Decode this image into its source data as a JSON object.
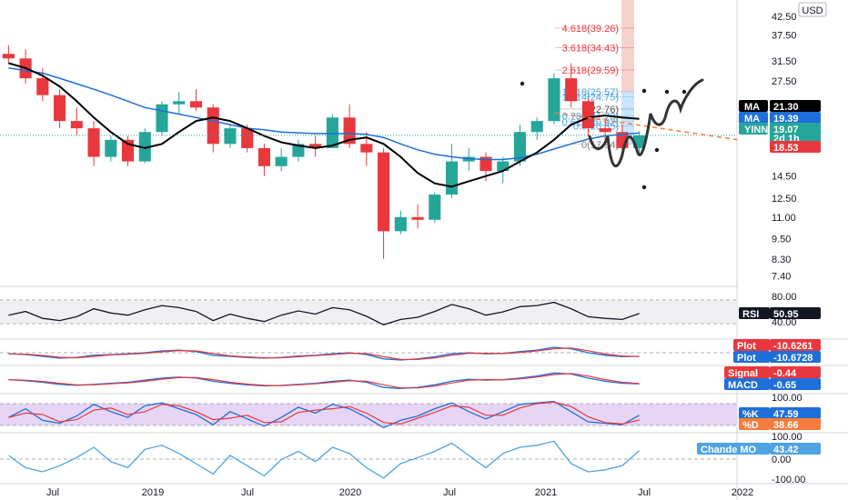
{
  "chart_data": {
    "type": "candlestick",
    "ticker": "YINN",
    "currency": "USD",
    "price_axis_ticks": [
      "42.50",
      "37.50",
      "31.50",
      "27.50",
      "23.50",
      "19.00",
      "14.50",
      "12.50",
      "11.00",
      "9.50",
      "8.30",
      "7.40"
    ],
    "time_axis_ticks": [
      "Jul",
      "2019",
      "Jul",
      "2020",
      "Jul",
      "2021",
      "Jul",
      "2022"
    ],
    "scale": "log",
    "price_bars": [
      {
        "label": "2018-05",
        "open": 33,
        "high": 35,
        "low": 31,
        "close": 32
      },
      {
        "label": "2018-06",
        "open": 32,
        "high": 34,
        "low": 27,
        "close": 28
      },
      {
        "label": "2018-07",
        "open": 28,
        "high": 30,
        "low": 24,
        "close": 25
      },
      {
        "label": "2018-08",
        "open": 25,
        "high": 26,
        "low": 20,
        "close": 21
      },
      {
        "label": "2018-09",
        "open": 21,
        "high": 23,
        "low": 19,
        "close": 20
      },
      {
        "label": "2018-10",
        "open": 20,
        "high": 21,
        "low": 15.5,
        "close": 16.5
      },
      {
        "label": "2018-11",
        "open": 16.5,
        "high": 19,
        "low": 16,
        "close": 18.5
      },
      {
        "label": "2018-12",
        "open": 18.5,
        "high": 19,
        "low": 15.5,
        "close": 16
      },
      {
        "label": "2019-01",
        "open": 16,
        "high": 20,
        "low": 15.8,
        "close": 19.5
      },
      {
        "label": "2019-02",
        "open": 19.5,
        "high": 24,
        "low": 19,
        "close": 23.5
      },
      {
        "label": "2019-03",
        "open": 23.5,
        "high": 25.5,
        "low": 22,
        "close": 24
      },
      {
        "label": "2019-04",
        "open": 24,
        "high": 26,
        "low": 22.5,
        "close": 23
      },
      {
        "label": "2019-05",
        "open": 23,
        "high": 23.5,
        "low": 17,
        "close": 18
      },
      {
        "label": "2019-06",
        "open": 18,
        "high": 20.5,
        "low": 17.5,
        "close": 20
      },
      {
        "label": "2019-07",
        "open": 20,
        "high": 20.5,
        "low": 17,
        "close": 17.5
      },
      {
        "label": "2019-08",
        "open": 17.5,
        "high": 18,
        "low": 14.5,
        "close": 15.5
      },
      {
        "label": "2019-09",
        "open": 15.5,
        "high": 17.5,
        "low": 15,
        "close": 16.5
      },
      {
        "label": "2019-10",
        "open": 16.5,
        "high": 18.5,
        "low": 16,
        "close": 18
      },
      {
        "label": "2019-11",
        "open": 18,
        "high": 19,
        "low": 16.5,
        "close": 17.5
      },
      {
        "label": "2019-12",
        "open": 17.5,
        "high": 22,
        "low": 17.5,
        "close": 21.5
      },
      {
        "label": "2020-01",
        "open": 21.5,
        "high": 23.5,
        "low": 17.5,
        "close": 18
      },
      {
        "label": "2020-02",
        "open": 18,
        "high": 19.5,
        "low": 15.5,
        "close": 17
      },
      {
        "label": "2020-03",
        "open": 17,
        "high": 17.5,
        "low": 8.3,
        "close": 10
      },
      {
        "label": "2020-04",
        "open": 10,
        "high": 11.5,
        "low": 9.8,
        "close": 11
      },
      {
        "label": "2020-05",
        "open": 11,
        "high": 12,
        "low": 10.2,
        "close": 10.8
      },
      {
        "label": "2020-06",
        "open": 10.8,
        "high": 13,
        "low": 10.6,
        "close": 12.8
      },
      {
        "label": "2020-07",
        "open": 12.8,
        "high": 18,
        "low": 12.5,
        "close": 16
      },
      {
        "label": "2020-08",
        "open": 16,
        "high": 17.5,
        "low": 15,
        "close": 16.5
      },
      {
        "label": "2020-09",
        "open": 16.5,
        "high": 17,
        "low": 14,
        "close": 15
      },
      {
        "label": "2020-10",
        "open": 15,
        "high": 16.5,
        "low": 13.8,
        "close": 16
      },
      {
        "label": "2020-11",
        "open": 16,
        "high": 20.5,
        "low": 15.5,
        "close": 19.5
      },
      {
        "label": "2020-12",
        "open": 19.5,
        "high": 21.5,
        "low": 18.5,
        "close": 21
      },
      {
        "label": "2021-01",
        "open": 21,
        "high": 29,
        "low": 20.5,
        "close": 28
      },
      {
        "label": "2021-02",
        "open": 28,
        "high": 31,
        "low": 23,
        "close": 24
      },
      {
        "label": "2021-03",
        "open": 24,
        "high": 24.5,
        "low": 19,
        "close": 20
      },
      {
        "label": "2021-04",
        "open": 20,
        "high": 21.5,
        "low": 18.5,
        "close": 19.5
      },
      {
        "label": "2021-05",
        "open": 19.5,
        "high": 20.5,
        "low": 16.5,
        "close": 17.5
      },
      {
        "label": "2021-06",
        "open": 17.5,
        "high": 19.6,
        "low": 16.8,
        "close": 19.07
      }
    ],
    "ma_black": [
      31,
      30,
      28.5,
      26.5,
      24,
      21.5,
      19.5,
      18,
      17.5,
      18,
      19.5,
      21,
      21.5,
      21,
      20,
      19,
      18.2,
      17.8,
      17.5,
      17.8,
      18.5,
      18.8,
      18,
      16.5,
      14.8,
      13.8,
      13.5,
      14,
      14.5,
      15,
      16,
      17,
      18.5,
      20.5,
      21.5,
      21.8,
      21.5,
      21.3
    ],
    "ma_blue": [
      30,
      29.5,
      29,
      28,
      27,
      26,
      25,
      24,
      23,
      22.5,
      22,
      21.5,
      21,
      20.5,
      20,
      19.8,
      19.5,
      19.4,
      19.3,
      19.3,
      19.3,
      19.2,
      18.8,
      18,
      17.3,
      16.8,
      16.5,
      16.3,
      16.2,
      16.2,
      16.4,
      16.8,
      17.4,
      18,
      18.6,
      19,
      19.2,
      19.39
    ],
    "fibonacci_levels": [
      {
        "label": "4.618(39.26)",
        "value": 39.26
      },
      {
        "label": "3.618(34.43)",
        "value": 34.43
      },
      {
        "label": "2.618(29.59)",
        "value": 29.59
      },
      {
        "label": "1.618(25.57)",
        "value": 25.57
      },
      {
        "label": "1.414(24.75)",
        "value": 24.75
      },
      {
        "label": "1(22.76)",
        "value": 22.76
      },
      {
        "label": "0.786(21.73)",
        "value": 21.73
      },
      {
        "label": "0.618(20.92)",
        "value": 20.92
      },
      {
        "label": "0.5(20.35)",
        "value": 20.35
      },
      {
        "label": "0(17.94)",
        "value": 17.94
      }
    ],
    "price_labels": [
      {
        "name": "MA",
        "value": "21.30",
        "color": "#000000"
      },
      {
        "name": "MA",
        "value": "19.39",
        "color": "#1e6fd9"
      },
      {
        "name": "YINN",
        "value": "19.07",
        "extra": "2d 1h",
        "color": "#26a69a"
      },
      {
        "name": "",
        "value": "18.53",
        "color": "#e8383d"
      }
    ],
    "trendline_value": 18.53,
    "rsi": {
      "label": "RSI",
      "value": "50.95",
      "ticks": [
        "80.00",
        "40.00"
      ],
      "values": [
        48,
        55,
        42,
        38,
        45,
        60,
        52,
        48,
        58,
        66,
        62,
        55,
        38,
        50,
        42,
        36,
        48,
        56,
        50,
        62,
        58,
        46,
        30,
        40,
        44,
        55,
        68,
        60,
        48,
        54,
        64,
        66,
        72,
        60,
        45,
        42,
        40,
        50.95
      ]
    },
    "osc1": {
      "labels": [
        {
          "name": "Plot",
          "value": "-10.6261",
          "color": "#e8383d"
        },
        {
          "name": "Plot",
          "value": "-10.6728",
          "color": "#1e6fd9"
        }
      ],
      "values": [
        52,
        50,
        45,
        40,
        42,
        48,
        50,
        52,
        55,
        60,
        62,
        58,
        48,
        45,
        42,
        40,
        42,
        46,
        48,
        52,
        55,
        50,
        38,
        35,
        38,
        44,
        52,
        55,
        52,
        53,
        58,
        62,
        70,
        66,
        55,
        48,
        44,
        45
      ]
    },
    "macd": {
      "labels": [
        {
          "name": "Signal",
          "value": "-0.44",
          "color": "#e8383d"
        },
        {
          "name": "MACD",
          "value": "-0.65",
          "color": "#1e6fd9"
        }
      ],
      "values": [
        55,
        53,
        50,
        46,
        44,
        46,
        48,
        50,
        54,
        58,
        60,
        58,
        52,
        48,
        45,
        43,
        44,
        46,
        48,
        52,
        54,
        50,
        40,
        38,
        40,
        45,
        52,
        56,
        54,
        55,
        58,
        62,
        68,
        66,
        58,
        52,
        48,
        47
      ]
    },
    "stoch": {
      "label_k": "%K",
      "value_k": "47.59",
      "label_d": "%D",
      "value_d": "38.66",
      "ticks": [
        "100.00",
        "0.00"
      ],
      "values": [
        40,
        70,
        30,
        20,
        45,
        85,
        60,
        40,
        80,
        90,
        70,
        50,
        15,
        60,
        35,
        10,
        40,
        75,
        55,
        85,
        70,
        40,
        5,
        30,
        45,
        70,
        90,
        60,
        35,
        60,
        85,
        90,
        95,
        60,
        25,
        20,
        15,
        47.59
      ]
    },
    "chande": {
      "label": "Chande MO",
      "value": "43.42",
      "ticks": [
        "100.00",
        "0.00",
        "-100.00"
      ],
      "values": [
        20,
        -40,
        -60,
        -30,
        10,
        60,
        -10,
        -40,
        50,
        70,
        30,
        -20,
        -70,
        20,
        -30,
        -80,
        0,
        40,
        -10,
        60,
        30,
        -40,
        -90,
        -20,
        10,
        40,
        80,
        20,
        -40,
        30,
        60,
        70,
        90,
        -20,
        -60,
        -50,
        -30,
        43.42
      ]
    }
  }
}
